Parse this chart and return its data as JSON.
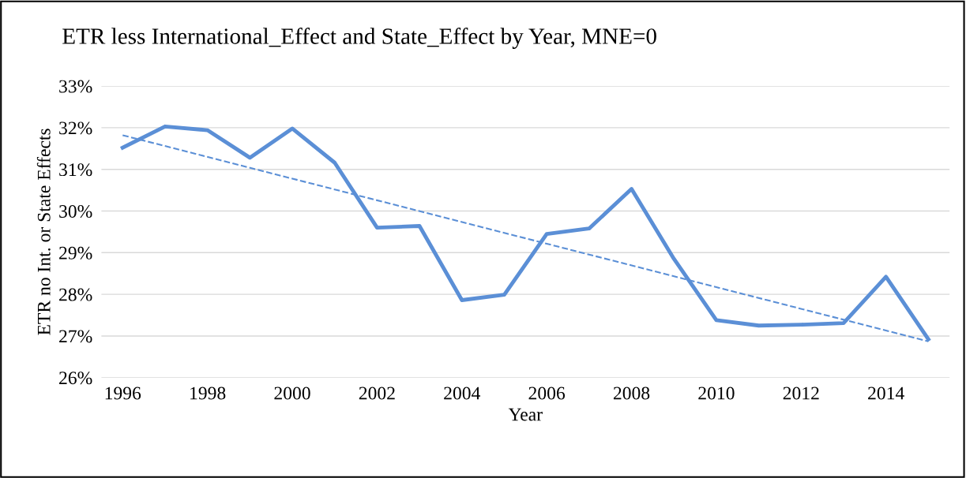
{
  "chart_data": {
    "type": "line",
    "title": "ETR less International_Effect and State_Effect by Year, MNE=0",
    "xlabel": "Year",
    "ylabel": "ETR no Int. or State Effects",
    "x": [
      1996,
      1997,
      1998,
      1999,
      2000,
      2001,
      2002,
      2003,
      2004,
      2005,
      2006,
      2007,
      2008,
      2009,
      2010,
      2011,
      2012,
      2013,
      2014,
      2015
    ],
    "series": [
      {
        "color": "#5b8fd6",
        "values": [
          31.52,
          32.03,
          31.94,
          31.28,
          31.98,
          31.16,
          29.6,
          29.64,
          27.86,
          27.99,
          29.45,
          29.58,
          30.53,
          28.85,
          27.38,
          27.25,
          27.27,
          27.31,
          28.42,
          26.92
        ]
      },
      {
        "type": "line",
        "color": "#5b8fd6",
        "line_style": "dashed",
        "x": [
          1996,
          2015
        ],
        "values": [
          31.82,
          26.87
        ]
      }
    ],
    "xlim": [
      1995.5,
      2015.5
    ],
    "xticks": [
      1996,
      1998,
      2000,
      2002,
      2004,
      2006,
      2008,
      2010,
      2012,
      2014
    ],
    "ylim": [
      26,
      33
    ],
    "yticks": [
      {
        "value": 26,
        "label": "26%"
      },
      {
        "value": 27,
        "label": "27%"
      },
      {
        "value": 28,
        "label": "28%"
      },
      {
        "value": 29,
        "label": "29%"
      },
      {
        "value": 30,
        "label": "30%"
      },
      {
        "value": 31,
        "label": "31%"
      },
      {
        "value": 32,
        "label": "32%"
      },
      {
        "value": 33,
        "label": "33%"
      }
    ],
    "grid": "y",
    "line_style": "solid"
  }
}
